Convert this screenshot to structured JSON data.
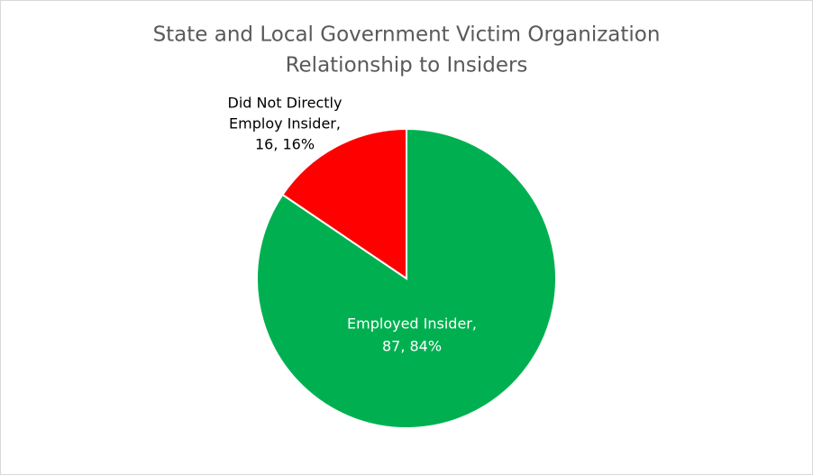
{
  "chart_data": {
    "type": "pie",
    "title": [
      "State and Local Government  Victim Organization",
      "Relationship to Insiders"
    ],
    "values": [
      87,
      16
    ],
    "value_labels": [
      [
        "Employed Insider,",
        "87, 84%"
      ],
      [
        "Did Not Directly",
        "Employ Insider,",
        "16, 16%"
      ]
    ],
    "colors": [
      "#00b050",
      "#ff0000"
    ]
  }
}
